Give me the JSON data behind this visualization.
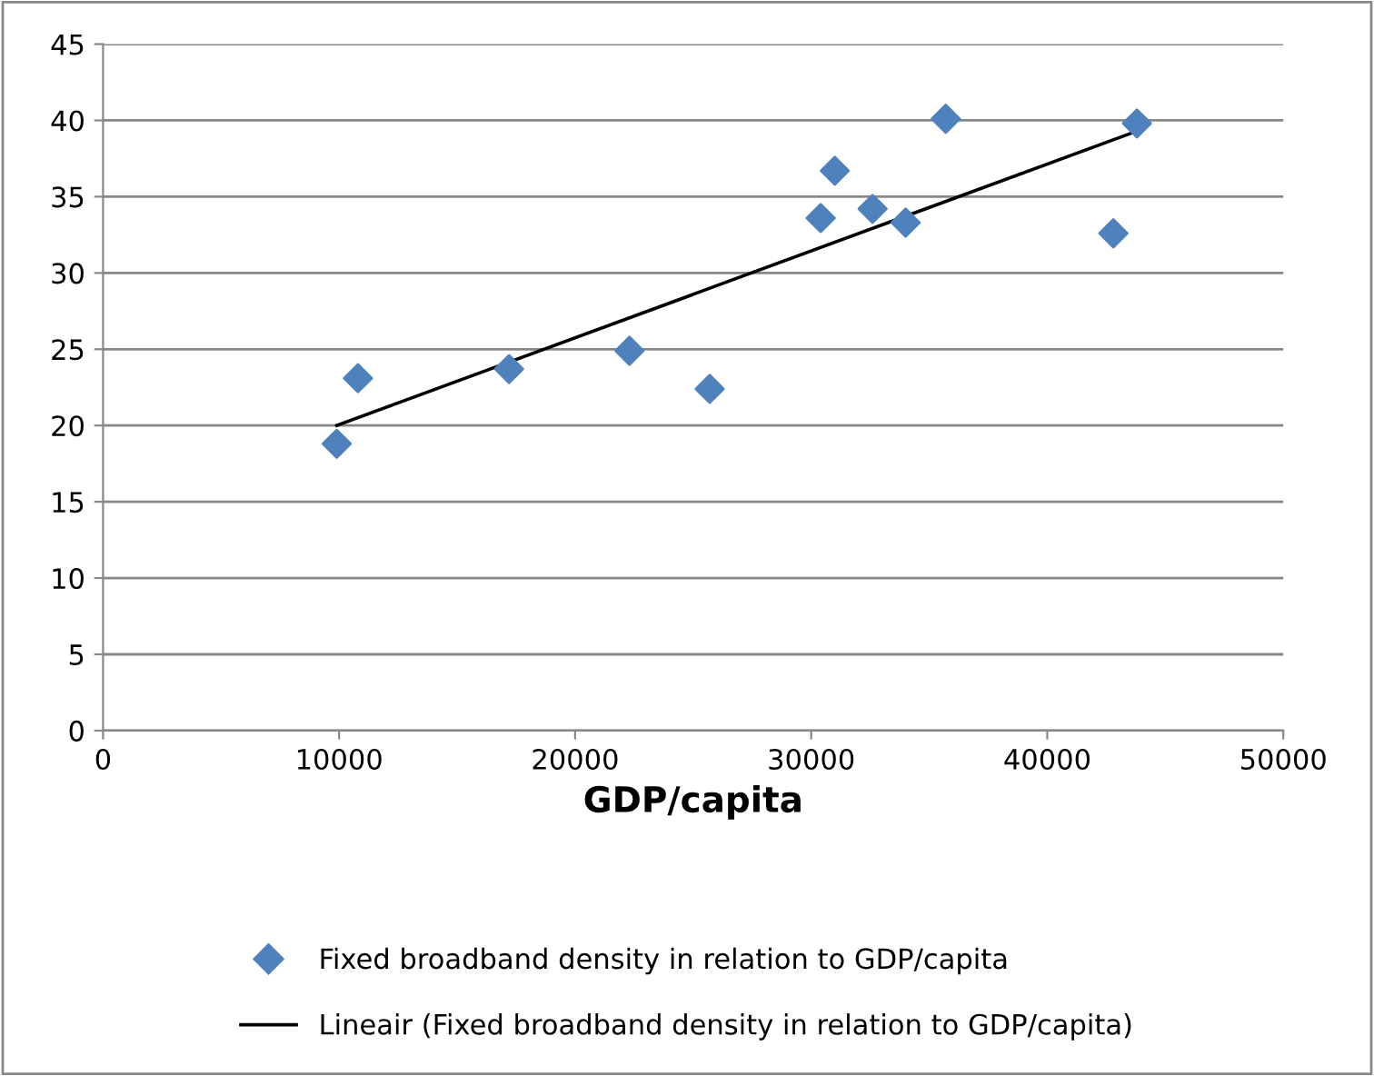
{
  "chart_data": {
    "type": "scatter",
    "xlabel": "GDP/capita",
    "xlim": [
      0,
      50000
    ],
    "ylim": [
      0,
      45
    ],
    "xticks": [
      0,
      10000,
      20000,
      30000,
      40000,
      50000
    ],
    "yticks": [
      0,
      5,
      10,
      15,
      20,
      25,
      30,
      35,
      40,
      45
    ],
    "grid": "y",
    "legend": "bottom",
    "series": [
      {
        "name": "Fixed broadband density in relation to GDP/capita",
        "marker": "diamond",
        "color": "#4f81bd",
        "x": [
          9900,
          10800,
          17200,
          22300,
          25700,
          30400,
          31000,
          32600,
          34000,
          35700,
          42800,
          43800
        ],
        "values": [
          18.8,
          23.1,
          23.7,
          24.9,
          22.4,
          33.6,
          36.7,
          34.2,
          33.3,
          40.1,
          32.6,
          39.8
        ]
      },
      {
        "name": "Lineair (Fixed broadband density in relation to GDP/capita)",
        "type": "line",
        "marker": "none",
        "color": "#000000",
        "x": [
          9900,
          43800
        ],
        "values": [
          20.0,
          39.3
        ]
      }
    ]
  }
}
